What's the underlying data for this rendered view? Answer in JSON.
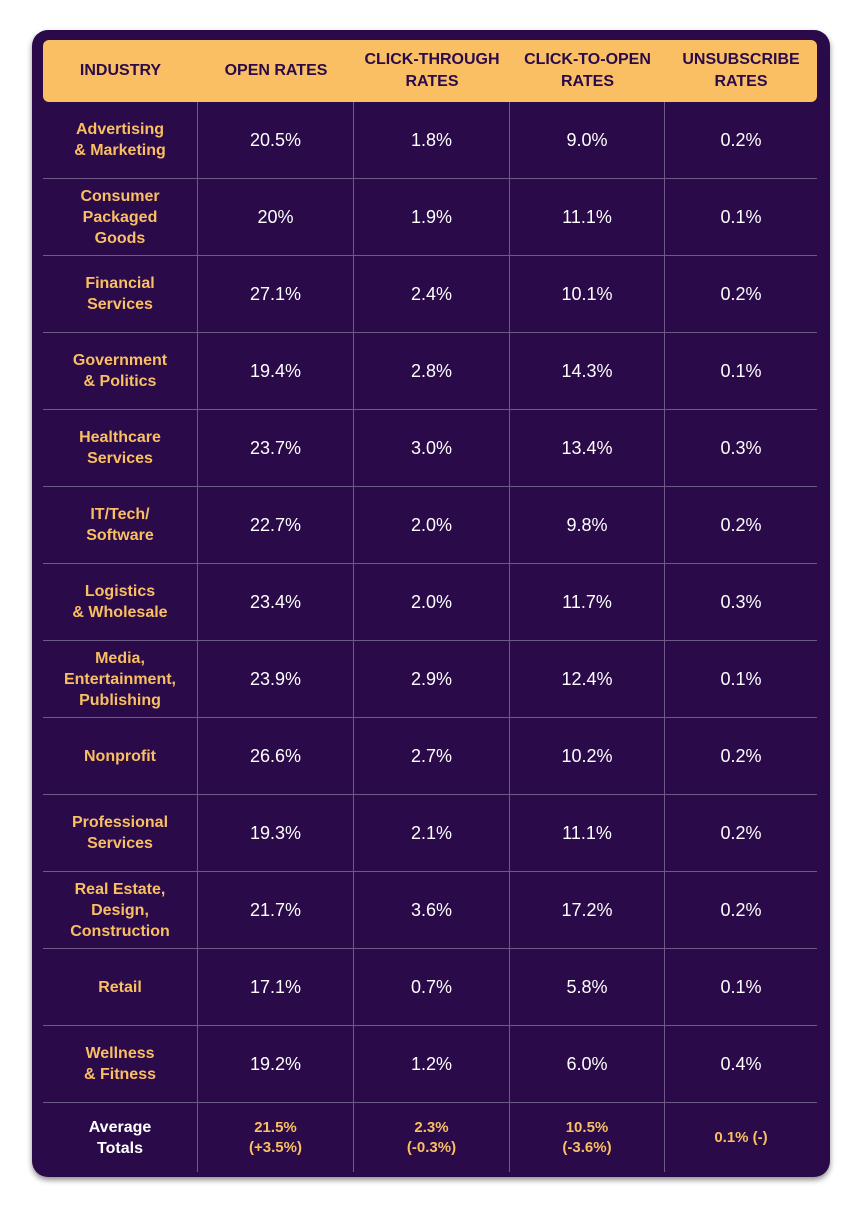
{
  "chart_data": {
    "type": "table",
    "columns": [
      "INDUSTRY",
      "OPEN RATES",
      "CLICK-THROUGH\nRATES",
      "CLICK-TO-OPEN\nRATES",
      "UNSUBSCRIBE\nRATES"
    ],
    "rows": [
      {
        "industry": "Advertising\n& Marketing",
        "open": "20.5%",
        "ctr": "1.8%",
        "cto": "9.0%",
        "unsub": "0.2%"
      },
      {
        "industry": "Consumer\nPackaged\nGoods",
        "open": "20%",
        "ctr": "1.9%",
        "cto": "11.1%",
        "unsub": "0.1%"
      },
      {
        "industry": "Financial\nServices",
        "open": "27.1%",
        "ctr": "2.4%",
        "cto": "10.1%",
        "unsub": "0.2%"
      },
      {
        "industry": "Government\n& Politics",
        "open": "19.4%",
        "ctr": "2.8%",
        "cto": "14.3%",
        "unsub": "0.1%"
      },
      {
        "industry": "Healthcare\nServices",
        "open": "23.7%",
        "ctr": "3.0%",
        "cto": "13.4%",
        "unsub": "0.3%"
      },
      {
        "industry": "IT/Tech/\nSoftware",
        "open": "22.7%",
        "ctr": "2.0%",
        "cto": "9.8%",
        "unsub": "0.2%"
      },
      {
        "industry": "Logistics\n& Wholesale",
        "open": "23.4%",
        "ctr": "2.0%",
        "cto": "11.7%",
        "unsub": "0.3%"
      },
      {
        "industry": "Media,\nEntertainment,\nPublishing",
        "open": "23.9%",
        "ctr": "2.9%",
        "cto": "12.4%",
        "unsub": "0.1%"
      },
      {
        "industry": "Nonprofit",
        "open": "26.6%",
        "ctr": "2.7%",
        "cto": "10.2%",
        "unsub": "0.2%"
      },
      {
        "industry": "Professional\nServices",
        "open": "19.3%",
        "ctr": "2.1%",
        "cto": "11.1%",
        "unsub": "0.2%"
      },
      {
        "industry": "Real Estate,\nDesign,\nConstruction",
        "open": "21.7%",
        "ctr": "3.6%",
        "cto": "17.2%",
        "unsub": "0.2%"
      },
      {
        "industry": "Retail",
        "open": "17.1%",
        "ctr": "0.7%",
        "cto": "5.8%",
        "unsub": "0.1%"
      },
      {
        "industry": "Wellness\n& Fitness",
        "open": "19.2%",
        "ctr": "1.2%",
        "cto": "6.0%",
        "unsub": "0.4%"
      }
    ],
    "totals": {
      "label": "Average\nTotals",
      "open": "21.5%\n(+3.5%)",
      "ctr": "2.3%\n(-0.3%)",
      "cto": "10.5%\n(-3.6%)",
      "unsub": "0.1% (-)"
    }
  },
  "colors": {
    "background": "#2a0a48",
    "header": "#f9bf62",
    "accent_text": "#f9bf62",
    "body_text": "#ffffff",
    "gridline": "#6e5a86"
  }
}
